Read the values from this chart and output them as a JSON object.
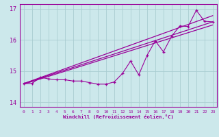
{
  "xlabel": "Windchill (Refroidissement éolien,°C)",
  "background_color": "#cce8eb",
  "grid_color": "#aacdd1",
  "line_color": "#990099",
  "xlim": [
    -0.5,
    23.5
  ],
  "ylim": [
    13.85,
    17.15
  ],
  "xticks": [
    0,
    1,
    2,
    3,
    4,
    5,
    6,
    7,
    8,
    9,
    10,
    11,
    12,
    13,
    14,
    15,
    16,
    17,
    18,
    19,
    20,
    21,
    22,
    23
  ],
  "yticks": [
    14,
    15,
    16,
    17
  ],
  "curve_x": [
    0,
    1,
    2,
    3,
    4,
    5,
    6,
    7,
    8,
    9,
    10,
    11,
    12,
    13,
    14,
    15,
    16,
    17,
    18,
    19,
    20,
    21,
    22,
    23
  ],
  "curve_y": [
    14.6,
    14.6,
    14.8,
    14.75,
    14.72,
    14.72,
    14.68,
    14.68,
    14.63,
    14.58,
    14.58,
    14.65,
    14.92,
    15.32,
    14.88,
    15.5,
    15.97,
    15.62,
    16.12,
    16.45,
    16.43,
    16.95,
    16.6,
    16.58
  ],
  "line1_x": [
    0,
    23
  ],
  "line1_y": [
    14.6,
    16.58
  ],
  "line2_x": [
    0,
    23
  ],
  "line2_y": [
    14.6,
    16.78
  ],
  "line3_x": [
    0,
    23
  ],
  "line3_y": [
    14.58,
    16.48
  ]
}
